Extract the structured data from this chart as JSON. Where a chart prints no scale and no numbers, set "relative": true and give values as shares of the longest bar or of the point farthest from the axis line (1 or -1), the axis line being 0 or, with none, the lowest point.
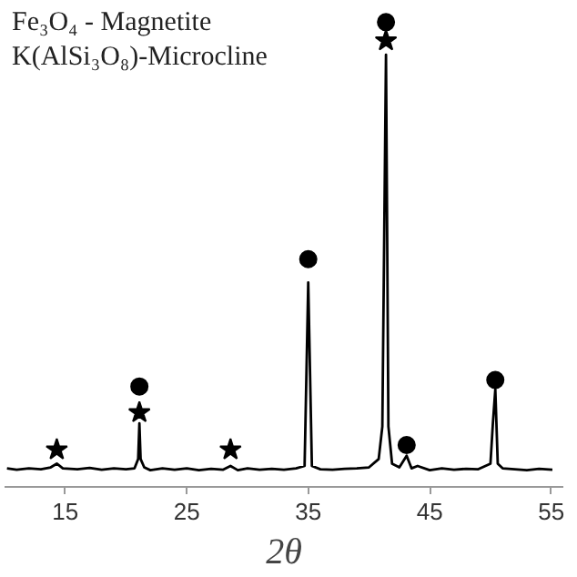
{
  "chart_data": {
    "type": "line",
    "relative": true,
    "xlabel": "2θ",
    "xlim": [
      10,
      56
    ],
    "xticks": [
      15,
      25,
      35,
      45,
      55
    ],
    "annotations": [
      "Fe₃O₄ - Magnetite",
      "K(AlSi₃O₈)-Microcline"
    ],
    "series": [
      {
        "color": "#000000",
        "x": [
          10.2,
          11,
          12,
          13,
          13.8,
          14.3,
          14.8,
          16,
          17,
          18,
          19,
          20,
          20.7,
          21.0,
          21.1,
          21.2,
          21.5,
          22,
          23,
          24,
          25,
          26,
          27,
          28,
          28.6,
          29.2,
          30,
          31,
          32,
          33,
          34,
          34.7,
          35.0,
          35.3,
          36,
          37,
          38,
          39,
          40,
          40.8,
          41.1,
          41.4,
          41.6,
          41.9,
          42.5,
          43.1,
          43.5,
          44,
          45,
          46,
          47,
          48,
          49,
          50.0,
          50.2,
          50.4,
          50.6,
          51,
          52,
          53,
          54,
          55.1
        ],
        "values": [
          0.04,
          0.037,
          0.04,
          0.038,
          0.042,
          0.05,
          0.04,
          0.038,
          0.041,
          0.037,
          0.04,
          0.038,
          0.04,
          0.06,
          0.137,
          0.06,
          0.042,
          0.036,
          0.04,
          0.037,
          0.04,
          0.036,
          0.039,
          0.037,
          0.045,
          0.036,
          0.04,
          0.037,
          0.039,
          0.037,
          0.04,
          0.045,
          0.44,
          0.045,
          0.038,
          0.037,
          0.039,
          0.04,
          0.042,
          0.06,
          0.13,
          0.93,
          0.13,
          0.05,
          0.042,
          0.067,
          0.04,
          0.045,
          0.036,
          0.04,
          0.037,
          0.039,
          0.038,
          0.05,
          0.137,
          0.21,
          0.05,
          0.04,
          0.038,
          0.036,
          0.039,
          0.037
        ]
      },
      {
        "type": "scatter",
        "marker": "circle",
        "color": "#000000",
        "x": [
          21.1,
          35.0,
          41.4,
          43.1,
          50.4
        ],
        "values": [
          0.216,
          0.49,
          1,
          0.09,
          0.23
        ]
      },
      {
        "type": "scatter",
        "marker": "star",
        "color": "#000000",
        "x": [
          14.3,
          21.1,
          28.6,
          41.4
        ],
        "values": [
          0.08,
          0.16,
          0.08,
          0.96
        ]
      }
    ]
  }
}
